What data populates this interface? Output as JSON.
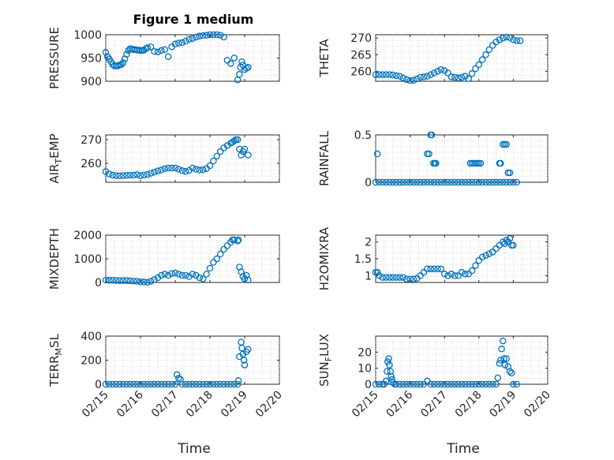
{
  "figure": {
    "title": "Figure 1 medium"
  },
  "chart_data": [
    {
      "type": "scatter",
      "id": "pressure",
      "ylabel": "PRESSURE",
      "ylim": [
        900,
        1000
      ],
      "yticks": [
        "900",
        "950",
        "1000"
      ],
      "xlim": [
        0,
        5
      ],
      "xticks": [
        "02/15",
        "02/16",
        "02/17",
        "02/18",
        "02/19",
        "02/20"
      ],
      "xlabel": "",
      "grid": true,
      "show_xtick_labels": false,
      "x": [
        0.0,
        0.05,
        0.1,
        0.15,
        0.2,
        0.25,
        0.3,
        0.35,
        0.4,
        0.45,
        0.5,
        0.55,
        0.6,
        0.65,
        0.7,
        0.75,
        0.8,
        0.85,
        0.9,
        0.95,
        1.0,
        1.05,
        1.1,
        1.15,
        1.2,
        1.3,
        1.4,
        1.5,
        1.6,
        1.7,
        1.8,
        1.9,
        2.0,
        2.1,
        2.2,
        2.3,
        2.4,
        2.5,
        2.6,
        2.7,
        2.8,
        2.9,
        3.0,
        3.1,
        3.2,
        3.3,
        3.4,
        3.5,
        3.6,
        3.7,
        3.8,
        3.85,
        3.88,
        3.92,
        3.95,
        4.0,
        4.05,
        4.1
      ],
      "y": [
        962,
        953,
        948,
        942,
        936,
        933,
        933,
        933,
        935,
        936,
        940,
        948,
        958,
        966,
        970,
        969,
        968,
        968,
        967,
        967,
        966,
        966,
        967,
        970,
        972,
        974,
        964,
        963,
        966,
        968,
        953,
        974,
        980,
        982,
        983,
        986,
        990,
        992,
        995,
        997,
        998,
        999,
        1000,
        1000,
        1000,
        999,
        995,
        945,
        938,
        950,
        903,
        915,
        930,
        942,
        935,
        925,
        928,
        930
      ]
    },
    {
      "type": "scatter",
      "id": "theta",
      "ylabel": "THETA",
      "ylim": [
        257,
        271
      ],
      "yticks": [
        "260",
        "265",
        "270"
      ],
      "xlim": [
        0,
        5
      ],
      "xticks": [
        "02/15",
        "02/16",
        "02/17",
        "02/18",
        "02/19",
        "02/20"
      ],
      "xlabel": "",
      "grid": true,
      "show_xtick_labels": false,
      "x": [
        0.0,
        0.1,
        0.2,
        0.3,
        0.4,
        0.5,
        0.6,
        0.7,
        0.8,
        0.9,
        1.0,
        1.1,
        1.2,
        1.3,
        1.4,
        1.5,
        1.6,
        1.7,
        1.8,
        1.9,
        2.0,
        2.1,
        2.2,
        2.3,
        2.4,
        2.5,
        2.6,
        2.7,
        2.8,
        2.9,
        3.0,
        3.1,
        3.2,
        3.3,
        3.4,
        3.5,
        3.6,
        3.7,
        3.8,
        3.9,
        4.0,
        4.1,
        4.2
      ],
      "y": [
        259.0,
        259.0,
        259.0,
        259.0,
        259.0,
        258.9,
        258.7,
        258.5,
        258.0,
        257.5,
        257.2,
        257.3,
        257.7,
        258.2,
        258.3,
        258.5,
        259.0,
        259.5,
        260.0,
        260.5,
        260.2,
        259.5,
        258.3,
        258.2,
        258.0,
        258.2,
        258.5,
        257.8,
        259.3,
        260.8,
        262.0,
        263.5,
        265.0,
        266.5,
        267.8,
        268.8,
        269.5,
        270.0,
        270.3,
        270.1,
        269.5,
        269.2,
        269.2
      ]
    },
    {
      "type": "scatter",
      "id": "air_temp",
      "ylabel": "AIR_TEMP",
      "ylim": [
        252,
        272
      ],
      "yticks": [
        "260",
        "270"
      ],
      "xlim": [
        0,
        5
      ],
      "xticks": [
        "02/15",
        "02/16",
        "02/17",
        "02/18",
        "02/19",
        "02/20"
      ],
      "xlabel": "",
      "grid": true,
      "show_xtick_labels": false,
      "x": [
        0.0,
        0.1,
        0.2,
        0.3,
        0.4,
        0.5,
        0.6,
        0.7,
        0.8,
        0.9,
        1.0,
        1.1,
        1.2,
        1.3,
        1.4,
        1.5,
        1.6,
        1.7,
        1.8,
        1.9,
        2.0,
        2.1,
        2.2,
        2.3,
        2.4,
        2.5,
        2.6,
        2.7,
        2.8,
        2.9,
        3.0,
        3.1,
        3.2,
        3.3,
        3.4,
        3.5,
        3.6,
        3.65,
        3.7,
        3.75,
        3.8,
        3.85,
        3.9,
        3.95,
        4.0,
        4.1
      ],
      "y": [
        256.5,
        255.5,
        255.0,
        254.8,
        254.7,
        254.8,
        254.9,
        255.0,
        255.0,
        255.2,
        254.8,
        255.0,
        255.3,
        255.8,
        256.3,
        256.8,
        257.2,
        257.7,
        258.0,
        258.0,
        258.0,
        257.5,
        256.9,
        256.6,
        257.0,
        258.0,
        257.5,
        257.2,
        257.3,
        257.8,
        259.0,
        261.0,
        263.0,
        265.0,
        266.5,
        267.5,
        268.5,
        269.0,
        269.5,
        270.0,
        270.0,
        266.0,
        263.5,
        265.0,
        266.0,
        263.5
      ]
    },
    {
      "type": "scatter",
      "id": "rainfall",
      "ylabel": "RAINFALL",
      "ylim": [
        0,
        0.5
      ],
      "yticks": [
        "0",
        "0.5"
      ],
      "xlim": [
        0,
        5
      ],
      "xticks": [
        "02/15",
        "02/16",
        "02/17",
        "02/18",
        "02/19",
        "02/20"
      ],
      "xlabel": "",
      "grid": true,
      "show_xtick_labels": false,
      "x": [
        0.0,
        0.1,
        0.2,
        0.3,
        0.4,
        0.5,
        0.6,
        0.7,
        0.8,
        0.9,
        1.0,
        1.1,
        1.2,
        1.3,
        1.4,
        1.5,
        1.6,
        1.7,
        1.8,
        1.9,
        2.0,
        2.1,
        2.2,
        2.3,
        2.4,
        2.5,
        2.6,
        2.7,
        2.8,
        2.9,
        3.0,
        3.1,
        3.2,
        3.3,
        3.4,
        3.5,
        3.6,
        3.7,
        3.8,
        3.9,
        4.0,
        4.1,
        0.05,
        1.5,
        1.55,
        1.6,
        1.63,
        1.68,
        1.72,
        1.75,
        2.75,
        2.8,
        2.85,
        2.9,
        2.95,
        3.0,
        3.05,
        3.6,
        3.63,
        3.7,
        3.75,
        3.8,
        3.85,
        3.9
      ],
      "y": [
        0,
        0,
        0,
        0,
        0,
        0,
        0,
        0,
        0,
        0,
        0,
        0,
        0,
        0,
        0,
        0,
        0,
        0,
        0,
        0,
        0,
        0,
        0,
        0,
        0,
        0,
        0,
        0,
        0,
        0,
        0,
        0,
        0,
        0,
        0,
        0,
        0,
        0,
        0,
        0,
        0,
        0,
        0.3,
        0.3,
        0.3,
        0.5,
        0.5,
        0.2,
        0.2,
        0.2,
        0.2,
        0.2,
        0.2,
        0.2,
        0.2,
        0.2,
        0.2,
        0.2,
        0.2,
        0.4,
        0.4,
        0.4,
        0.1,
        0.1
      ]
    },
    {
      "type": "scatter",
      "id": "mixdepth",
      "ylabel": "MIXDEPTH",
      "ylim": [
        0,
        2000
      ],
      "yticks": [
        "0",
        "1000",
        "2000"
      ],
      "xlim": [
        0,
        5
      ],
      "xticks": [
        "02/15",
        "02/16",
        "02/17",
        "02/18",
        "02/19",
        "02/20"
      ],
      "xlabel": "",
      "grid": true,
      "show_xtick_labels": false,
      "x": [
        0.0,
        0.1,
        0.2,
        0.3,
        0.4,
        0.5,
        0.6,
        0.7,
        0.8,
        0.9,
        1.0,
        1.1,
        1.2,
        1.3,
        1.4,
        1.5,
        1.6,
        1.7,
        1.8,
        1.9,
        2.0,
        2.1,
        2.2,
        2.3,
        2.4,
        2.5,
        2.6,
        2.7,
        2.8,
        2.9,
        3.0,
        3.1,
        3.2,
        3.3,
        3.4,
        3.5,
        3.6,
        3.65,
        3.7,
        3.8,
        3.82,
        3.85,
        3.9,
        3.95,
        4.0,
        4.05,
        4.1
      ],
      "y": [
        100,
        90,
        90,
        85,
        80,
        80,
        80,
        70,
        60,
        50,
        30,
        20,
        10,
        50,
        120,
        200,
        300,
        350,
        300,
        380,
        400,
        350,
        300,
        300,
        250,
        350,
        300,
        200,
        150,
        350,
        600,
        850,
        1000,
        1200,
        1400,
        1550,
        1700,
        1800,
        1800,
        1750,
        1800,
        650,
        450,
        250,
        150,
        300,
        100
      ]
    },
    {
      "type": "scatter",
      "id": "h2omixra",
      "ylabel": "H2OMIXRA",
      "ylim": [
        0.8,
        2.2
      ],
      "yticks": [
        "1",
        "1.5",
        "2"
      ],
      "xlim": [
        0,
        5
      ],
      "xticks": [
        "02/15",
        "02/16",
        "02/17",
        "02/18",
        "02/19",
        "02/20"
      ],
      "xlabel": "",
      "grid": true,
      "show_xtick_labels": false,
      "x": [
        0.0,
        0.05,
        0.1,
        0.2,
        0.3,
        0.4,
        0.5,
        0.6,
        0.7,
        0.8,
        0.9,
        1.0,
        1.1,
        1.2,
        1.3,
        1.4,
        1.5,
        1.6,
        1.7,
        1.8,
        1.9,
        2.0,
        2.1,
        2.2,
        2.3,
        2.4,
        2.5,
        2.6,
        2.7,
        2.8,
        2.9,
        3.0,
        3.1,
        3.2,
        3.3,
        3.4,
        3.5,
        3.6,
        3.7,
        3.75,
        3.8,
        3.85,
        3.9,
        3.95,
        4.0
      ],
      "y": [
        1.1,
        1.1,
        1.0,
        0.95,
        0.95,
        0.95,
        0.95,
        0.95,
        0.95,
        0.95,
        0.9,
        0.9,
        0.9,
        0.92,
        1.0,
        1.1,
        1.2,
        1.2,
        1.2,
        1.2,
        1.2,
        1.05,
        1.0,
        1.05,
        1.0,
        1.0,
        1.1,
        1.05,
        1.05,
        1.15,
        1.3,
        1.45,
        1.55,
        1.6,
        1.65,
        1.7,
        1.8,
        1.9,
        2.0,
        1.95,
        2.05,
        2.0,
        2.1,
        1.9,
        1.9
      ]
    },
    {
      "type": "scatter",
      "id": "terr_msl",
      "ylabel": "TERR_MSL",
      "ylim": [
        0,
        400
      ],
      "yticks": [
        "0",
        "200",
        "400"
      ],
      "xlim": [
        0,
        5
      ],
      "xticks": [
        "02/15",
        "02/16",
        "02/17",
        "02/18",
        "02/19",
        "02/20"
      ],
      "xlabel": "Time",
      "grid": true,
      "show_xtick_labels": true,
      "x": [
        0.0,
        0.1,
        0.2,
        0.3,
        0.4,
        0.5,
        0.6,
        0.7,
        0.8,
        0.9,
        1.0,
        1.1,
        1.2,
        1.3,
        1.4,
        1.5,
        1.6,
        1.7,
        1.8,
        1.9,
        2.0,
        2.05,
        2.1,
        2.15,
        2.2,
        2.3,
        2.4,
        2.5,
        2.6,
        2.7,
        2.8,
        2.9,
        3.0,
        3.1,
        3.2,
        3.3,
        3.4,
        3.5,
        3.6,
        3.7,
        3.8,
        3.82,
        3.85,
        3.9,
        3.92,
        3.95,
        3.98,
        4.0,
        4.05,
        4.1
      ],
      "y": [
        0,
        0,
        0,
        0,
        0,
        0,
        0,
        0,
        0,
        0,
        0,
        0,
        0,
        0,
        0,
        0,
        0,
        0,
        0,
        0,
        0,
        80,
        50,
        40,
        0,
        0,
        0,
        0,
        0,
        0,
        0,
        0,
        0,
        0,
        0,
        0,
        0,
        0,
        0,
        0,
        0,
        30,
        230,
        350,
        300,
        250,
        200,
        160,
        270,
        290
      ]
    },
    {
      "type": "scatter",
      "id": "sunflux",
      "ylabel": "SUN_FLUX",
      "ylim": [
        0,
        30
      ],
      "yticks": [
        "0",
        "10",
        "20"
      ],
      "xlim": [
        0,
        5
      ],
      "xticks": [
        "02/15",
        "02/16",
        "02/17",
        "02/18",
        "02/19",
        "02/20"
      ],
      "xlabel": "Time",
      "grid": true,
      "show_xtick_labels": true,
      "x": [
        0.0,
        0.1,
        0.2,
        0.25,
        0.3,
        0.33,
        0.35,
        0.38,
        0.4,
        0.43,
        0.45,
        0.48,
        0.5,
        0.55,
        0.6,
        0.7,
        0.8,
        0.9,
        1.0,
        1.1,
        1.2,
        1.3,
        1.4,
        1.5,
        1.6,
        1.7,
        1.8,
        1.9,
        2.0,
        2.1,
        2.2,
        2.3,
        2.4,
        2.5,
        2.6,
        2.7,
        2.8,
        2.9,
        3.0,
        3.1,
        3.2,
        3.3,
        3.4,
        3.5,
        3.55,
        3.6,
        3.63,
        3.66,
        3.7,
        3.73,
        3.76,
        3.8,
        3.85,
        3.9,
        3.95,
        4.0,
        4.1
      ],
      "y": [
        0,
        0,
        0,
        0,
        2,
        8,
        14,
        16,
        12,
        8,
        5,
        3,
        1,
        0,
        0,
        0,
        0,
        0,
        0,
        0,
        0,
        0,
        0,
        2,
        0,
        0,
        0,
        0,
        0,
        0,
        0,
        0,
        0,
        0,
        0,
        0,
        0,
        0,
        0,
        0,
        0,
        0,
        0,
        0,
        4,
        13,
        15,
        22,
        27,
        16,
        12,
        16,
        11,
        8,
        7,
        0,
        0
      ]
    }
  ]
}
